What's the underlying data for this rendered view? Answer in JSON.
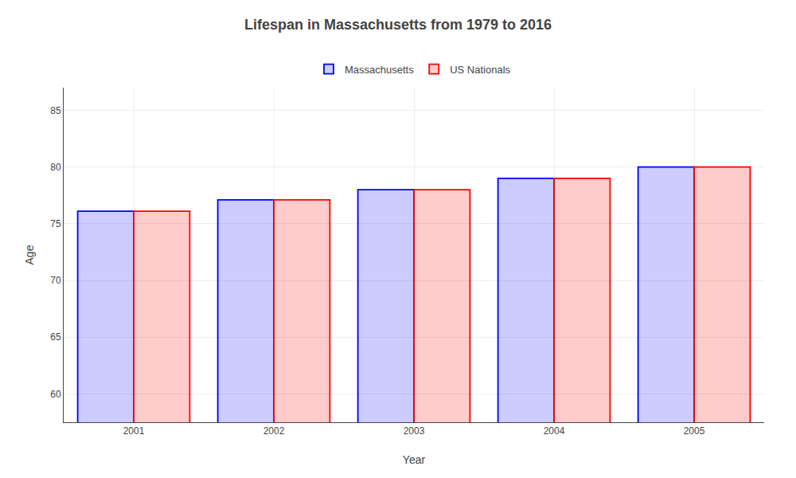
{
  "chart_data": {
    "type": "bar",
    "title": "Lifespan in Massachusetts from 1979 to 2016",
    "xlabel": "Year",
    "ylabel": "Age",
    "categories": [
      "2001",
      "2002",
      "2003",
      "2004",
      "2005"
    ],
    "series": [
      {
        "name": "Massachusetts",
        "color": "#0000ff",
        "values": [
          76.1,
          77.1,
          78.0,
          79.0,
          80.0
        ]
      },
      {
        "name": "US Nationals",
        "color": "#ff0000",
        "values": [
          76.1,
          77.1,
          78.0,
          79.0,
          80.0
        ]
      }
    ],
    "ylim": [
      57.5,
      87
    ],
    "yticks": [
      60,
      65,
      70,
      75,
      80,
      85
    ],
    "grid": true,
    "legend": "top"
  }
}
